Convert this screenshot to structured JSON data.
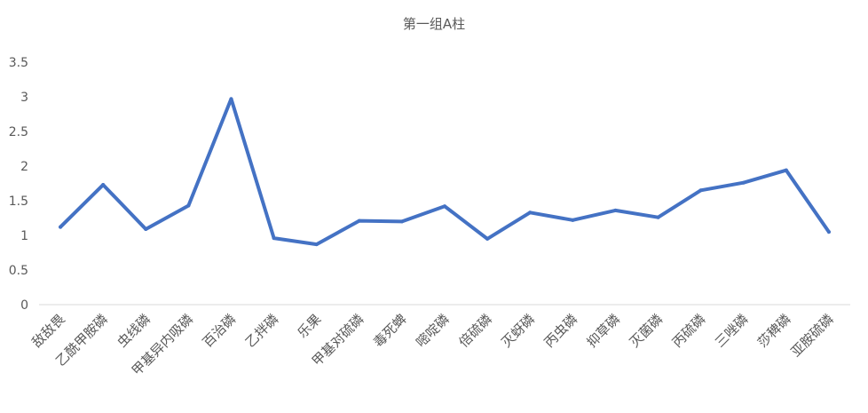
{
  "chart_data": {
    "type": "line",
    "title": "第一组A柱",
    "xlabel": "",
    "ylabel": "",
    "ylim": [
      0,
      3.5
    ],
    "yticks": [
      "0",
      "0.5",
      "1",
      "1.5",
      "2",
      "2.5",
      "3",
      "3.5"
    ],
    "grid": false,
    "legend": "none",
    "categories": [
      "敌敌畏",
      "乙酰甲胺磷",
      "虫线磷",
      "甲基异内吸磷",
      "百治磷",
      "乙拌磷",
      "乐果",
      "甲基对硫磷",
      "毒死蜱",
      "嘧啶磷",
      "倍硫磷",
      "灭蚜磷",
      "丙虫磷",
      "抑草磷",
      "灭菌磷",
      "丙硫磷",
      "三唑磷",
      "莎稗磷",
      "亚胺硫磷"
    ],
    "series": [
      {
        "name": "",
        "color": "#4472c4",
        "values": [
          1.12,
          1.73,
          1.09,
          1.43,
          2.97,
          0.96,
          0.87,
          1.21,
          1.2,
          1.42,
          0.95,
          1.33,
          1.22,
          1.36,
          1.26,
          1.65,
          1.76,
          1.94,
          1.05
        ]
      }
    ]
  }
}
